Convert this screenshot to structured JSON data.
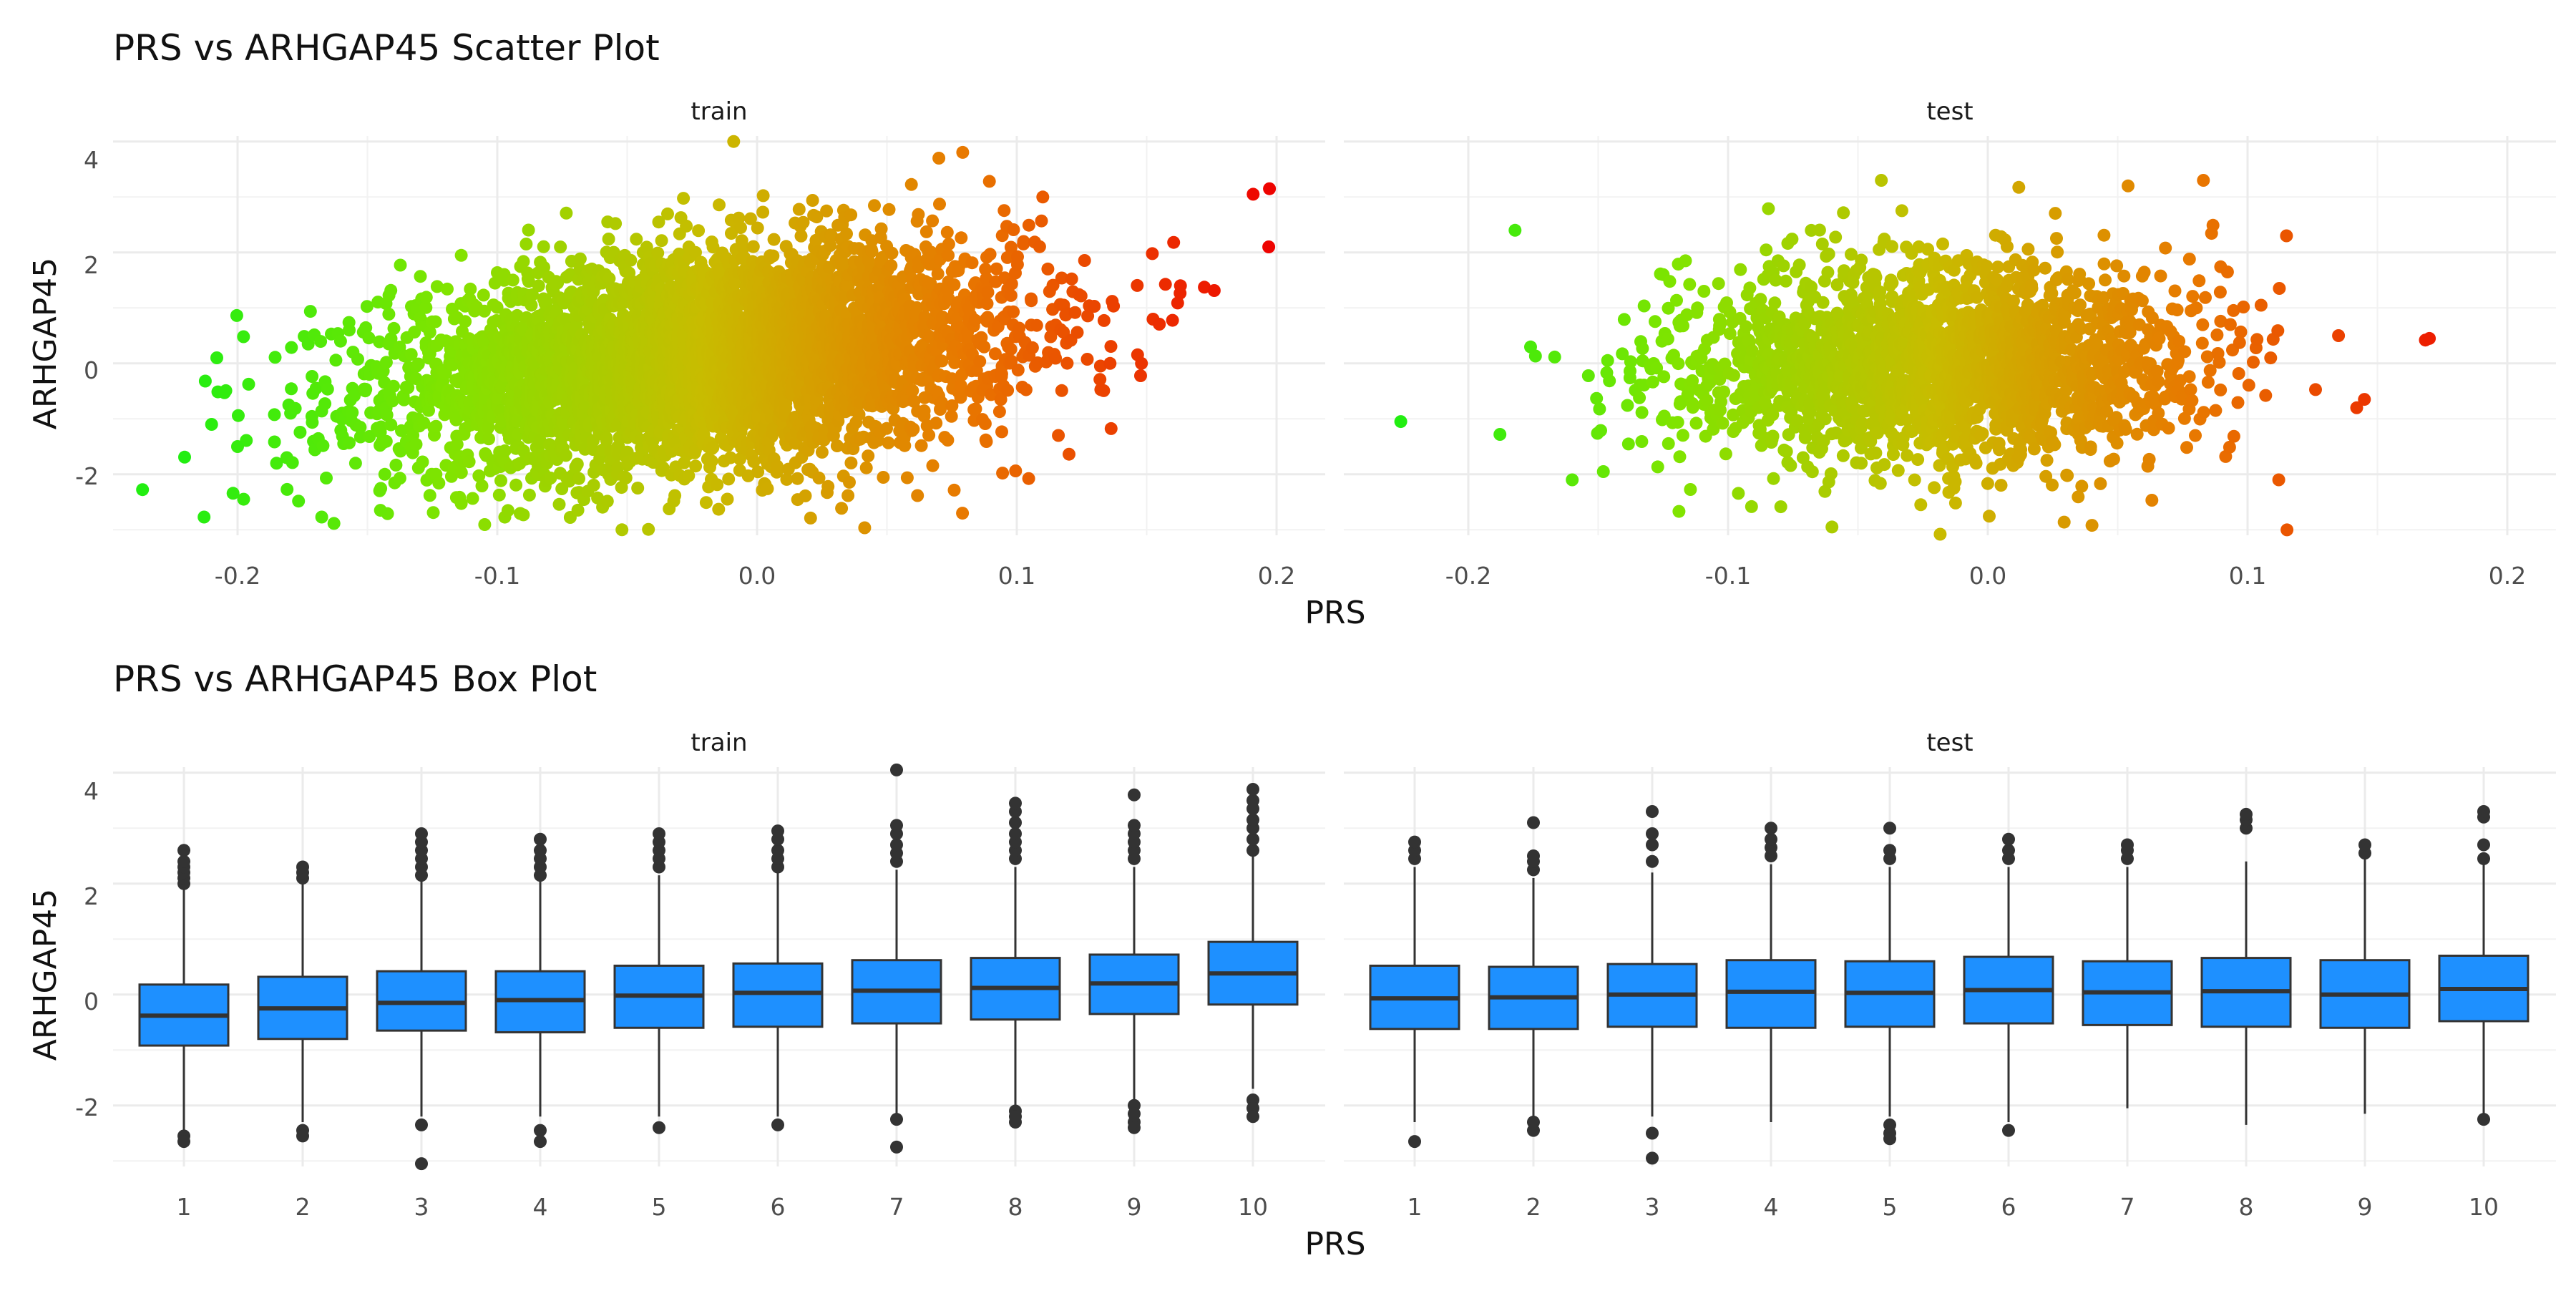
{
  "scatter": {
    "title": "PRS vs ARHGAP45 Scatter Plot",
    "xlabel": "PRS",
    "ylabel": "ARHGAP45",
    "x_tick_labels": [
      "-0.2",
      "-0.1",
      "0.0",
      "0.1",
      "0.2"
    ],
    "y_tick_labels": [
      "-2",
      "0",
      "2",
      "4"
    ]
  },
  "box": {
    "title": "PRS vs ARHGAP45 Box Plot",
    "xlabel": "PRS",
    "ylabel": "ARHGAP45",
    "x_tick_labels": [
      "1",
      "2",
      "3",
      "4",
      "5",
      "6",
      "7",
      "8",
      "9",
      "10"
    ],
    "y_tick_labels": [
      "-2",
      "0",
      "2",
      "4"
    ],
    "fill_color": "#1E90FF"
  },
  "colors": {
    "low": "#22ee11",
    "mid": "#c8bc00",
    "high": "#ee0000"
  },
  "chart_data": [
    {
      "type": "scatter",
      "title": "PRS vs ARHGAP45 Scatter Plot",
      "xlabel": "PRS",
      "ylabel": "ARHGAP45",
      "color_by": "PRS",
      "facets": [
        {
          "label": "train",
          "xlim": [
            -0.245,
            0.2
          ],
          "ylim": [
            -3.1,
            4.1
          ],
          "cloud": {
            "x_mean": -0.02,
            "x_sd": 0.06,
            "y_mean": 0.1,
            "y_sd": 0.95,
            "n": 4500,
            "slope": 4.5
          },
          "points": [
            [
              -0.21,
              -1.1
            ],
            [
              -0.208,
              0.1
            ],
            [
              -0.2,
              -1.5
            ],
            [
              -0.185,
              -1.8
            ],
            [
              -0.145,
              -2.65
            ],
            [
              -0.052,
              -3.0
            ],
            [
              -0.009,
              4.0
            ],
            [
              0.07,
              3.7
            ],
            [
              0.148,
              0.0
            ],
            [
              0.163,
              1.4
            ],
            [
              0.191,
              3.05
            ],
            [
              0.197,
              2.1
            ],
            [
              0.116,
              -1.3
            ],
            [
              0.11,
              3.0
            ]
          ]
        },
        {
          "label": "test",
          "xlim": [
            -0.245,
            0.2
          ],
          "ylim": [
            -3.1,
            4.1
          ],
          "cloud": {
            "x_mean": -0.02,
            "x_sd": 0.05,
            "y_mean": 0.0,
            "y_sd": 0.9,
            "n": 2200,
            "slope": 0
          },
          "points": [
            [
              -0.226,
              -1.05
            ],
            [
              -0.182,
              2.4
            ],
            [
              -0.16,
              -2.1
            ],
            [
              -0.06,
              -2.95
            ],
            [
              -0.041,
              3.3
            ],
            [
              0.112,
              -2.1
            ],
            [
              0.17,
              0.45
            ],
            [
              0.142,
              -0.8
            ],
            [
              0.145,
              -0.65
            ],
            [
              0.135,
              0.5
            ],
            [
              0.115,
              2.3
            ],
            [
              0.083,
              3.3
            ],
            [
              0.054,
              3.2
            ]
          ]
        }
      ]
    },
    {
      "type": "box",
      "title": "PRS vs ARHGAP45 Box Plot",
      "xlabel": "PRS",
      "ylabel": "ARHGAP45",
      "categories": [
        "1",
        "2",
        "3",
        "4",
        "5",
        "6",
        "7",
        "8",
        "9",
        "10"
      ],
      "facets": [
        {
          "label": "train",
          "ylim": [
            -3.1,
            4.1
          ],
          "boxes": [
            {
              "q1": -0.92,
              "median": -0.38,
              "q3": 0.18,
              "lower": -2.5,
              "upper": 1.9,
              "outliers": [
                2.0,
                2.1,
                2.2,
                2.3,
                2.4,
                2.6,
                -2.55,
                -2.65
              ]
            },
            {
              "q1": -0.8,
              "median": -0.25,
              "q3": 0.32,
              "lower": -2.3,
              "upper": 2.0,
              "outliers": [
                2.1,
                2.2,
                2.3,
                -2.45,
                -2.55
              ]
            },
            {
              "q1": -0.65,
              "median": -0.15,
              "q3": 0.42,
              "lower": -2.2,
              "upper": 2.05,
              "outliers": [
                2.15,
                2.3,
                2.45,
                2.6,
                2.75,
                2.9,
                -2.35,
                -3.05
              ]
            },
            {
              "q1": -0.68,
              "median": -0.1,
              "q3": 0.42,
              "lower": -2.2,
              "upper": 2.05,
              "outliers": [
                2.15,
                2.3,
                2.45,
                2.6,
                2.8,
                -2.45,
                -2.65
              ]
            },
            {
              "q1": -0.6,
              "median": -0.02,
              "q3": 0.52,
              "lower": -2.2,
              "upper": 2.15,
              "outliers": [
                2.3,
                2.45,
                2.6,
                2.75,
                2.9,
                -2.4
              ]
            },
            {
              "q1": -0.58,
              "median": 0.03,
              "q3": 0.56,
              "lower": -2.2,
              "upper": 2.2,
              "outliers": [
                2.3,
                2.45,
                2.6,
                2.8,
                2.95,
                -2.35
              ]
            },
            {
              "q1": -0.52,
              "median": 0.07,
              "q3": 0.62,
              "lower": -2.15,
              "upper": 2.25,
              "outliers": [
                2.4,
                2.55,
                2.7,
                2.9,
                3.05,
                4.05,
                -2.25,
                -2.75
              ]
            },
            {
              "q1": -0.45,
              "median": 0.12,
              "q3": 0.66,
              "lower": -2.0,
              "upper": 2.3,
              "outliers": [
                2.45,
                2.6,
                2.75,
                2.9,
                3.1,
                3.3,
                3.45,
                -2.1,
                -2.2,
                -2.3
              ]
            },
            {
              "q1": -0.35,
              "median": 0.2,
              "q3": 0.72,
              "lower": -1.9,
              "upper": 2.3,
              "outliers": [
                2.45,
                2.6,
                2.75,
                2.9,
                3.05,
                3.6,
                -2.0,
                -2.15,
                -2.3,
                -2.4
              ]
            },
            {
              "q1": -0.18,
              "median": 0.38,
              "q3": 0.95,
              "lower": -1.7,
              "upper": 2.5,
              "outliers": [
                2.6,
                2.8,
                3.0,
                3.15,
                3.35,
                3.5,
                3.7,
                -1.9,
                -2.05,
                -2.2
              ]
            }
          ]
        },
        {
          "label": "test",
          "ylim": [
            -3.1,
            4.1
          ],
          "boxes": [
            {
              "q1": -0.62,
              "median": -0.07,
              "q3": 0.52,
              "lower": -2.3,
              "upper": 2.3,
              "outliers": [
                2.45,
                2.6,
                2.75,
                -2.65
              ]
            },
            {
              "q1": -0.62,
              "median": -0.05,
              "q3": 0.5,
              "lower": -2.2,
              "upper": 2.1,
              "outliers": [
                2.25,
                2.4,
                2.5,
                3.1,
                -2.3,
                -2.45
              ]
            },
            {
              "q1": -0.58,
              "median": 0.0,
              "q3": 0.55,
              "lower": -2.2,
              "upper": 2.2,
              "outliers": [
                2.4,
                2.7,
                2.9,
                3.3,
                -2.5,
                -2.95
              ]
            },
            {
              "q1": -0.6,
              "median": 0.05,
              "q3": 0.62,
              "lower": -2.3,
              "upper": 2.35,
              "outliers": [
                2.5,
                2.65,
                2.8,
                3.0
              ]
            },
            {
              "q1": -0.58,
              "median": 0.03,
              "q3": 0.6,
              "lower": -2.2,
              "upper": 2.3,
              "outliers": [
                2.45,
                2.6,
                3.0,
                -2.35,
                -2.5,
                -2.6
              ]
            },
            {
              "q1": -0.52,
              "median": 0.08,
              "q3": 0.68,
              "lower": -2.3,
              "upper": 2.3,
              "outliers": [
                2.45,
                2.6,
                2.8,
                -2.45
              ]
            },
            {
              "q1": -0.55,
              "median": 0.04,
              "q3": 0.6,
              "lower": -2.05,
              "upper": 2.3,
              "outliers": [
                2.45,
                2.6,
                2.7
              ]
            },
            {
              "q1": -0.58,
              "median": 0.06,
              "q3": 0.66,
              "lower": -2.35,
              "upper": 2.4,
              "outliers": [
                3.0,
                3.15,
                3.25
              ]
            },
            {
              "q1": -0.6,
              "median": 0.0,
              "q3": 0.62,
              "lower": -2.15,
              "upper": 2.45,
              "outliers": [
                2.55,
                2.7
              ]
            },
            {
              "q1": -0.48,
              "median": 0.1,
              "q3": 0.7,
              "lower": -2.2,
              "upper": 2.35,
              "outliers": [
                2.45,
                2.7,
                3.2,
                3.3,
                -2.25
              ]
            }
          ]
        }
      ]
    }
  ]
}
